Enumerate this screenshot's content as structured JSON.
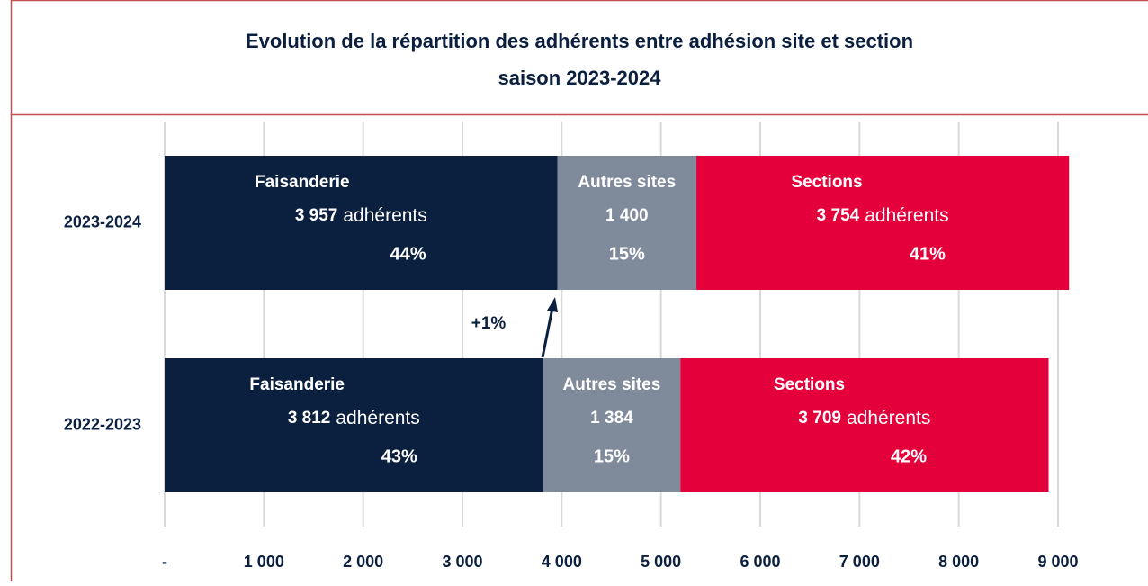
{
  "chart_data": {
    "type": "stacked-bar-horizontal",
    "title": "Evolution de la répartition des adhérents entre adhésion site et section",
    "subtitle": "saison 2023-2024",
    "categories": [
      "2023-2024",
      "2022-2023"
    ],
    "series": [
      {
        "name": "Faisanderie",
        "color": "#0b1f3f",
        "values": [
          3957,
          3812
        ],
        "value_labels": [
          "3 957",
          "3 812"
        ],
        "unit": "adhérents",
        "shares": [
          44,
          43
        ],
        "share_labels": [
          "44%",
          "43%"
        ]
      },
      {
        "name": "Autres sites",
        "color": "#7f8a9b",
        "values": [
          1400,
          1384
        ],
        "value_labels": [
          "1 400",
          "1 384"
        ],
        "shares": [
          15,
          15
        ],
        "share_labels": [
          "15%",
          "15%"
        ]
      },
      {
        "name": "Sections",
        "color": "#e4003a",
        "values": [
          3754,
          3709
        ],
        "value_labels": [
          "3 754",
          "3 709"
        ],
        "unit": "adhérents",
        "shares": [
          41,
          42
        ],
        "share_labels": [
          "41%",
          "42%"
        ]
      }
    ],
    "xlim": [
      0,
      9000
    ],
    "xticks": [
      {
        "value": 0,
        "label": "-"
      },
      {
        "value": 1000,
        "label": "1 000"
      },
      {
        "value": 2000,
        "label": "2 000"
      },
      {
        "value": 3000,
        "label": "3 000"
      },
      {
        "value": 4000,
        "label": "4 000"
      },
      {
        "value": 5000,
        "label": "5 000"
      },
      {
        "value": 6000,
        "label": "6 000"
      },
      {
        "value": 7000,
        "label": "7 000"
      },
      {
        "value": 8000,
        "label": "8 000"
      },
      {
        "value": 9000,
        "label": "9 000"
      }
    ],
    "grid": true,
    "annotation": "+1%"
  }
}
